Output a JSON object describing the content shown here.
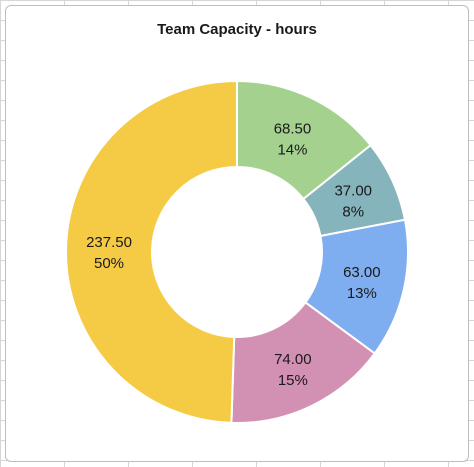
{
  "chart_data": {
    "type": "pie",
    "title": "Team Capacity - hours",
    "hole": true,
    "legend": "none",
    "slices": [
      {
        "value": 68.5,
        "value_label": "68.50",
        "percent_label": "14%",
        "color": "#a5d18f"
      },
      {
        "value": 37.0,
        "value_label": "37.00",
        "percent_label": "8%",
        "color": "#86b4bd"
      },
      {
        "value": 63.0,
        "value_label": "63.00",
        "percent_label": "13%",
        "color": "#7eaef0"
      },
      {
        "value": 74.0,
        "value_label": "74.00",
        "percent_label": "15%",
        "color": "#d291b2"
      },
      {
        "value": 237.5,
        "value_label": "237.50",
        "percent_label": "50%",
        "color": "#f5cb45"
      }
    ]
  }
}
